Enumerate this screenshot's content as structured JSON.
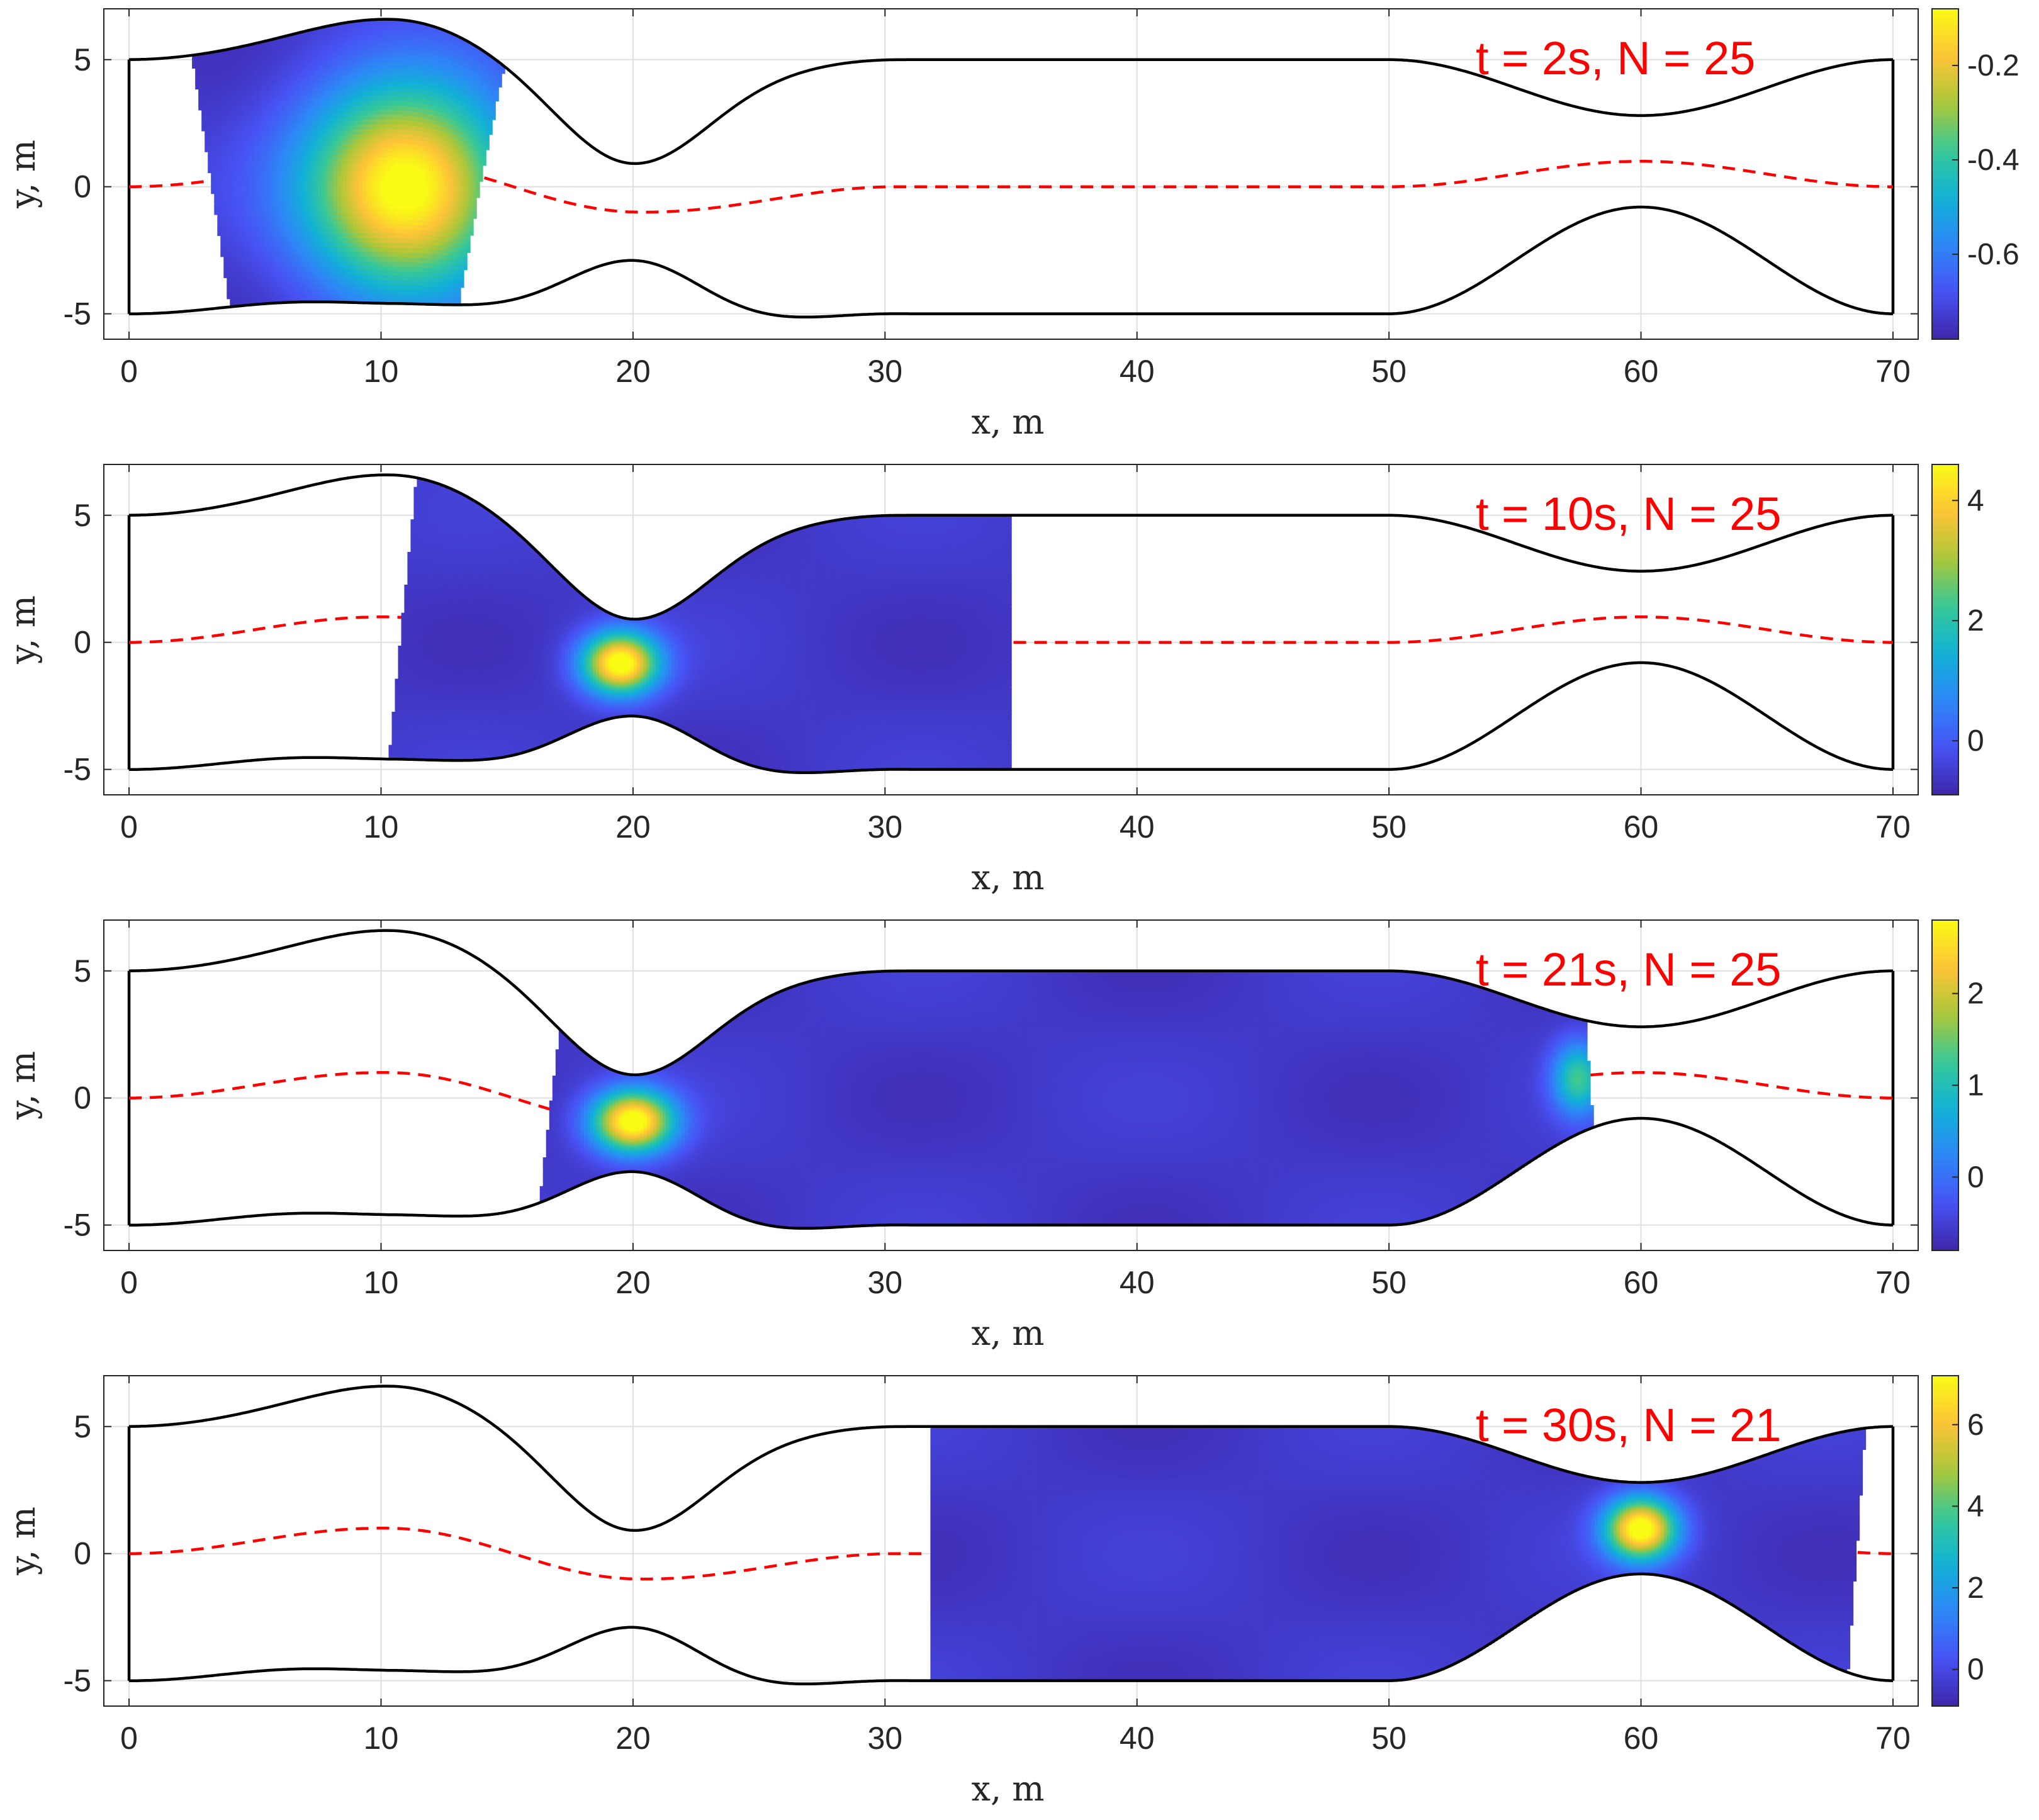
{
  "figure": {
    "boundary_color": "#000000",
    "centerline_color": "#ff0000",
    "annotation_color": "#ff0000",
    "colormap": "parula",
    "grid": true
  },
  "chart_data": [
    {
      "type": "heatmap",
      "annotation": "t = 2s, N = 25",
      "xlabel": "x, m",
      "ylabel": "y, m",
      "xlim": [
        -1,
        71
      ],
      "ylim": [
        -6,
        7
      ],
      "xticks": [
        0,
        10,
        20,
        30,
        40,
        50,
        60,
        70
      ],
      "yticks": [
        -5,
        0,
        5
      ],
      "colorbar": {
        "clim": [
          -0.78,
          -0.08
        ],
        "ticks": [
          "-0.6",
          "-0.4",
          "-0.2"
        ],
        "tick_values": [
          -0.6,
          -0.4,
          -0.2
        ]
      },
      "field_region": {
        "x_start_top": 2.5,
        "x_start_bottom": 4.0,
        "x_end_top": 14.9,
        "x_end_bottom": 13.1,
        "peaks": [
          {
            "x": 11.0,
            "y": 0.0,
            "value": -0.08,
            "sx": 4.0,
            "sy": 4.0
          }
        ]
      }
    },
    {
      "type": "heatmap",
      "annotation": "t = 10s, N = 25",
      "xlabel": "x, m",
      "ylabel": "y, m",
      "xlim": [
        -1,
        71
      ],
      "ylim": [
        -6,
        7
      ],
      "xticks": [
        0,
        10,
        20,
        30,
        40,
        50,
        60,
        70
      ],
      "yticks": [
        -5,
        0,
        5
      ],
      "colorbar": {
        "clim": [
          -0.9,
          4.6
        ],
        "ticks": [
          "0",
          "2",
          "4"
        ],
        "tick_values": [
          0,
          2,
          4
        ]
      },
      "field_region": {
        "x_start_top": 11.4,
        "x_start_bottom": 10.3,
        "x_end_top": 35.0,
        "x_end_bottom": 35.0,
        "peaks": [
          {
            "x": 19.5,
            "y": -0.8,
            "value": 4.6,
            "sx": 1.5,
            "sy": 1.2
          }
        ]
      }
    },
    {
      "type": "heatmap",
      "annotation": "t = 21s, N = 25",
      "xlabel": "x, m",
      "ylabel": "y, m",
      "xlim": [
        -1,
        71
      ],
      "ylim": [
        -6,
        7
      ],
      "xticks": [
        0,
        10,
        20,
        30,
        40,
        50,
        60,
        70
      ],
      "yticks": [
        -5,
        0,
        5
      ],
      "colorbar": {
        "clim": [
          -0.8,
          2.8
        ],
        "ticks": [
          "0",
          "1",
          "2"
        ],
        "tick_values": [
          0,
          1,
          2
        ]
      },
      "field_region": {
        "x_start_top": 17.1,
        "x_start_bottom": 16.3,
        "x_end_top": 57.8,
        "x_end_bottom": 58.1,
        "peaks": [
          {
            "x": 20.0,
            "y": -0.9,
            "value": 2.8,
            "sx": 1.6,
            "sy": 1.2
          },
          {
            "x": 57.5,
            "y": 0.8,
            "value": 1.0,
            "sx": 1.0,
            "sy": 1.4
          }
        ]
      }
    },
    {
      "type": "heatmap",
      "annotation": "t = 30s, N = 21",
      "xlabel": "x, m",
      "ylabel": "y, m",
      "xlim": [
        -1,
        71
      ],
      "ylim": [
        -6,
        7
      ],
      "xticks": [
        0,
        10,
        20,
        30,
        40,
        50,
        60,
        70
      ],
      "yticks": [
        -5,
        0,
        5
      ],
      "colorbar": {
        "clim": [
          -0.9,
          7.2
        ],
        "ticks": [
          "0",
          "2",
          "4",
          "6"
        ],
        "tick_values": [
          0,
          2,
          4,
          6
        ]
      },
      "field_region": {
        "x_start_top": 31.8,
        "x_start_bottom": 31.8,
        "x_end_top": 68.9,
        "x_end_bottom": 68.2,
        "peaks": [
          {
            "x": 60.0,
            "y": 1.0,
            "value": 7.2,
            "sx": 1.4,
            "sy": 1.2
          }
        ]
      }
    }
  ]
}
